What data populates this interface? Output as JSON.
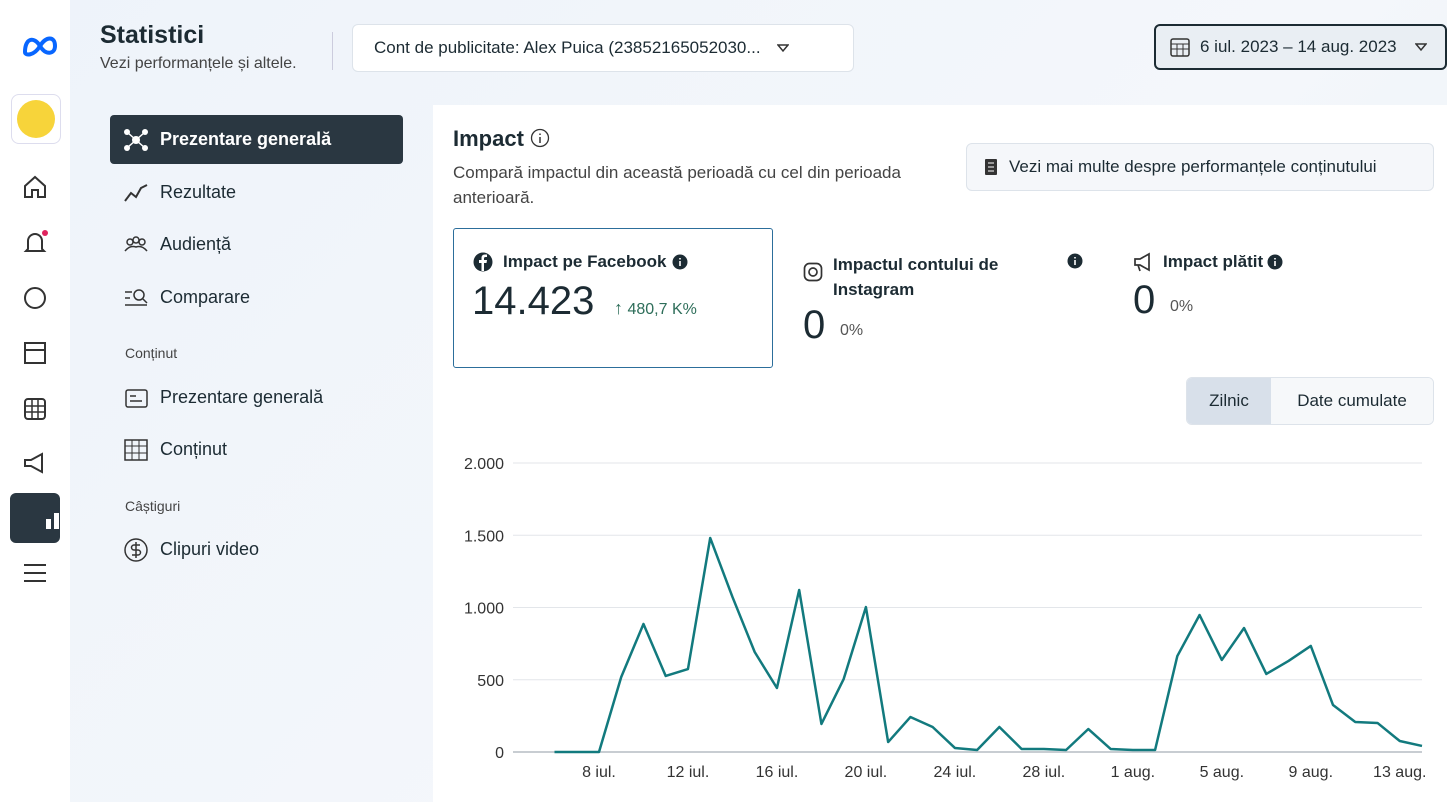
{
  "header": {
    "title": "Statistici",
    "subtitle": "Vezi performanțele și altele.",
    "account": "Cont de publicitate: Alex Puica (23852165052030...",
    "date_range": "6 iul. 2023 – 14 aug. 2023"
  },
  "nav": {
    "items": [
      "Prezentare generală",
      "Rezultate",
      "Audiență",
      "Comparare"
    ],
    "content_section": "Conținut",
    "content_items": [
      "Prezentare generală",
      "Conținut"
    ],
    "earnings_section": "Câștiguri",
    "earnings_items": [
      "Clipuri video"
    ]
  },
  "impact": {
    "title": "Impact",
    "description": "Compară impactul din această perioadă cu cel din perioada anterioară.",
    "more_button": "Vezi mai multe despre performanțele conținutului",
    "cards": [
      {
        "label": "Impact pe Facebook",
        "value": "14.423",
        "change": "480,7 K%"
      },
      {
        "label": "Impactul contului de Instagram",
        "value": "0",
        "change": "0%"
      },
      {
        "label": "Impact plătit",
        "value": "0",
        "change": "0%"
      }
    ],
    "toggle": [
      "Zilnic",
      "Date cumulate"
    ]
  },
  "chart_data": {
    "type": "line",
    "categories": [
      null,
      null,
      "8 iul.",
      null,
      null,
      null,
      "12 iul.",
      null,
      null,
      null,
      "16 iul.",
      null,
      null,
      null,
      "20 iul.",
      null,
      null,
      null,
      "24 iul.",
      null,
      null,
      null,
      "28 iul.",
      null,
      null,
      null,
      "1 aug.",
      null,
      null,
      null,
      "5 aug.",
      null,
      null,
      null,
      "9 aug.",
      null,
      null,
      null,
      "13 aug.",
      null
    ],
    "series": [
      {
        "name": "Impact pe Facebook",
        "color": "#127a7e",
        "values": [
          0,
          0,
          0,
          519,
          886,
          526,
          574,
          1481,
          1073,
          692,
          443,
          1121,
          194,
          505,
          1003,
          69,
          242,
          173,
          28,
          14,
          173,
          21,
          21,
          14,
          159,
          21,
          14,
          14,
          664,
          948,
          637,
          858,
          540,
          630,
          734,
          325,
          208,
          201,
          76,
          42
        ]
      }
    ],
    "ylim": [
      0,
      2000
    ],
    "yticks": [
      0,
      500,
      {
        "value": 1000,
        "label": "1.000"
      },
      {
        "value": 1500,
        "label": "1.500"
      },
      {
        "value": 2000,
        "label": "2.000"
      }
    ],
    "grid": true
  }
}
